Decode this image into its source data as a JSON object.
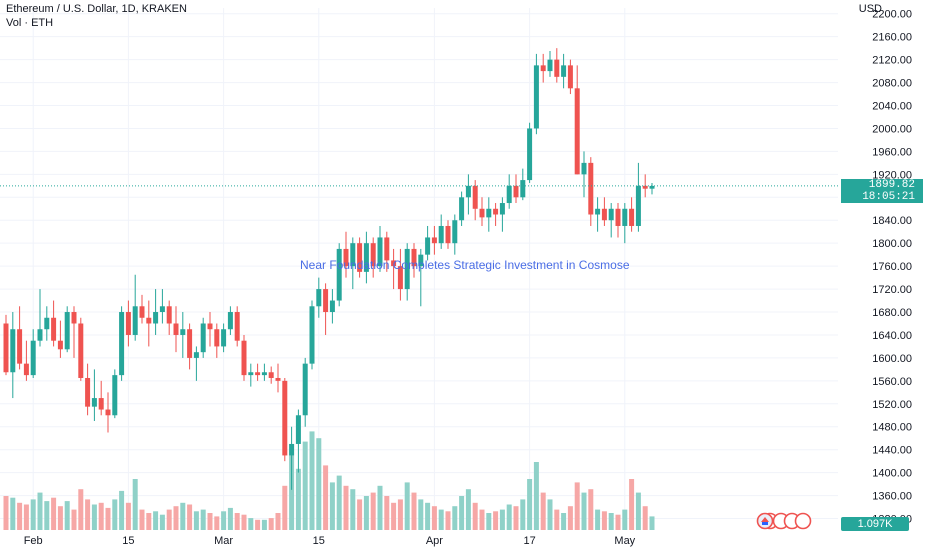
{
  "header": {
    "title": "Ethereum / U.S. Dollar, 1D, KRAKEN",
    "volume_label": "Vol · ETH",
    "currency": "USD"
  },
  "annotation": {
    "text": "Near Foundation Completes Strategic Investment in Cosmose"
  },
  "badges": {
    "last_price": "1899.82",
    "countdown": "18:05:21",
    "volume": "1.097K",
    "up_color": "#26a69a",
    "down_color": "#ef5350"
  },
  "chart_data": {
    "type": "candlestick",
    "title": "Ethereum / U.S. Dollar, 1D, KRAKEN",
    "y_unit": "USD",
    "ylim": [
      1300,
      2210
    ],
    "y_ticks": [
      1320,
      1360,
      1400,
      1440,
      1480,
      1520,
      1560,
      1600,
      1640,
      1680,
      1720,
      1760,
      1800,
      1840,
      1880,
      1920,
      1960,
      2000,
      2040,
      2080,
      2120,
      2160,
      2200
    ],
    "y_tick_labels": [
      "1320.00",
      "1360.00",
      "1400.00",
      "1440.00",
      "1480.00",
      "1520.00",
      "1560.00",
      "1600.00",
      "1640.00",
      "1680.00",
      "1720.00",
      "1760.00",
      "1800.00",
      "1840.00",
      "1880.00",
      "1920.00",
      "1960.00",
      "2000.00",
      "2040.00",
      "2080.00",
      "2120.00",
      "2160.00",
      "2200.00"
    ],
    "x_ticks": [
      {
        "index": 4,
        "label": "Feb"
      },
      {
        "index": 18,
        "label": "15"
      },
      {
        "index": 32,
        "label": "Mar"
      },
      {
        "index": 46,
        "label": "15"
      },
      {
        "index": 63,
        "label": "Apr"
      },
      {
        "index": 77,
        "label": "17"
      },
      {
        "index": 91,
        "label": "May"
      }
    ],
    "last_price": 1899.82,
    "grid": true,
    "candles": [
      {
        "o": 1660,
        "h": 1675,
        "l": 1570,
        "c": 1575,
        "v": 1.0
      },
      {
        "o": 1575,
        "h": 1680,
        "l": 1530,
        "c": 1650,
        "v": 0.95
      },
      {
        "o": 1650,
        "h": 1690,
        "l": 1580,
        "c": 1590,
        "v": 0.8
      },
      {
        "o": 1590,
        "h": 1630,
        "l": 1560,
        "c": 1570,
        "v": 0.75
      },
      {
        "o": 1570,
        "h": 1650,
        "l": 1565,
        "c": 1630,
        "v": 0.9
      },
      {
        "o": 1630,
        "h": 1720,
        "l": 1620,
        "c": 1650,
        "v": 1.1
      },
      {
        "o": 1650,
        "h": 1690,
        "l": 1630,
        "c": 1670,
        "v": 0.85
      },
      {
        "o": 1670,
        "h": 1700,
        "l": 1620,
        "c": 1630,
        "v": 0.95
      },
      {
        "o": 1630,
        "h": 1665,
        "l": 1600,
        "c": 1615,
        "v": 0.7
      },
      {
        "o": 1615,
        "h": 1690,
        "l": 1610,
        "c": 1680,
        "v": 0.85
      },
      {
        "o": 1680,
        "h": 1690,
        "l": 1600,
        "c": 1660,
        "v": 0.6
      },
      {
        "o": 1660,
        "h": 1670,
        "l": 1560,
        "c": 1565,
        "v": 1.2
      },
      {
        "o": 1565,
        "h": 1590,
        "l": 1500,
        "c": 1515,
        "v": 0.9
      },
      {
        "o": 1515,
        "h": 1580,
        "l": 1490,
        "c": 1530,
        "v": 0.75
      },
      {
        "o": 1530,
        "h": 1560,
        "l": 1500,
        "c": 1510,
        "v": 0.8
      },
      {
        "o": 1510,
        "h": 1540,
        "l": 1470,
        "c": 1500,
        "v": 0.65
      },
      {
        "o": 1500,
        "h": 1580,
        "l": 1495,
        "c": 1570,
        "v": 0.9
      },
      {
        "o": 1570,
        "h": 1690,
        "l": 1560,
        "c": 1680,
        "v": 1.15
      },
      {
        "o": 1680,
        "h": 1700,
        "l": 1620,
        "c": 1640,
        "v": 0.8
      },
      {
        "o": 1640,
        "h": 1745,
        "l": 1630,
        "c": 1690,
        "v": 1.5
      },
      {
        "o": 1690,
        "h": 1710,
        "l": 1660,
        "c": 1670,
        "v": 0.6
      },
      {
        "o": 1670,
        "h": 1700,
        "l": 1620,
        "c": 1660,
        "v": 0.5
      },
      {
        "o": 1660,
        "h": 1720,
        "l": 1640,
        "c": 1680,
        "v": 0.55
      },
      {
        "o": 1680,
        "h": 1720,
        "l": 1660,
        "c": 1690,
        "v": 0.45
      },
      {
        "o": 1690,
        "h": 1700,
        "l": 1640,
        "c": 1660,
        "v": 0.6
      },
      {
        "o": 1660,
        "h": 1690,
        "l": 1610,
        "c": 1640,
        "v": 0.7
      },
      {
        "o": 1640,
        "h": 1680,
        "l": 1600,
        "c": 1650,
        "v": 0.8
      },
      {
        "o": 1650,
        "h": 1660,
        "l": 1580,
        "c": 1600,
        "v": 0.75
      },
      {
        "o": 1600,
        "h": 1620,
        "l": 1560,
        "c": 1610,
        "v": 0.55
      },
      {
        "o": 1610,
        "h": 1670,
        "l": 1600,
        "c": 1660,
        "v": 0.6
      },
      {
        "o": 1660,
        "h": 1680,
        "l": 1620,
        "c": 1650,
        "v": 0.5
      },
      {
        "o": 1650,
        "h": 1660,
        "l": 1600,
        "c": 1620,
        "v": 0.4
      },
      {
        "o": 1620,
        "h": 1660,
        "l": 1610,
        "c": 1650,
        "v": 0.55
      },
      {
        "o": 1650,
        "h": 1690,
        "l": 1640,
        "c": 1680,
        "v": 0.65
      },
      {
        "o": 1680,
        "h": 1690,
        "l": 1620,
        "c": 1630,
        "v": 0.5
      },
      {
        "o": 1630,
        "h": 1640,
        "l": 1560,
        "c": 1570,
        "v": 0.45
      },
      {
        "o": 1570,
        "h": 1590,
        "l": 1550,
        "c": 1575,
        "v": 0.35
      },
      {
        "o": 1575,
        "h": 1590,
        "l": 1560,
        "c": 1570,
        "v": 0.3
      },
      {
        "o": 1570,
        "h": 1590,
        "l": 1560,
        "c": 1575,
        "v": 0.3
      },
      {
        "o": 1575,
        "h": 1585,
        "l": 1555,
        "c": 1565,
        "v": 0.35
      },
      {
        "o": 1565,
        "h": 1590,
        "l": 1540,
        "c": 1560,
        "v": 0.5
      },
      {
        "o": 1560,
        "h": 1565,
        "l": 1420,
        "c": 1430,
        "v": 1.3
      },
      {
        "o": 1430,
        "h": 1480,
        "l": 1370,
        "c": 1450,
        "v": 2.2
      },
      {
        "o": 1450,
        "h": 1510,
        "l": 1400,
        "c": 1500,
        "v": 1.8
      },
      {
        "o": 1500,
        "h": 1600,
        "l": 1480,
        "c": 1590,
        "v": 2.6
      },
      {
        "o": 1590,
        "h": 1700,
        "l": 1580,
        "c": 1690,
        "v": 2.9
      },
      {
        "o": 1690,
        "h": 1740,
        "l": 1670,
        "c": 1720,
        "v": 2.7
      },
      {
        "o": 1720,
        "h": 1730,
        "l": 1640,
        "c": 1680,
        "v": 1.9
      },
      {
        "o": 1680,
        "h": 1720,
        "l": 1660,
        "c": 1700,
        "v": 1.4
      },
      {
        "o": 1700,
        "h": 1800,
        "l": 1690,
        "c": 1790,
        "v": 1.6
      },
      {
        "o": 1790,
        "h": 1820,
        "l": 1740,
        "c": 1760,
        "v": 1.3
      },
      {
        "o": 1760,
        "h": 1810,
        "l": 1720,
        "c": 1800,
        "v": 1.2
      },
      {
        "o": 1800,
        "h": 1810,
        "l": 1740,
        "c": 1750,
        "v": 0.9
      },
      {
        "o": 1750,
        "h": 1820,
        "l": 1730,
        "c": 1800,
        "v": 1.0
      },
      {
        "o": 1800,
        "h": 1810,
        "l": 1740,
        "c": 1760,
        "v": 1.1
      },
      {
        "o": 1760,
        "h": 1830,
        "l": 1750,
        "c": 1810,
        "v": 1.3
      },
      {
        "o": 1810,
        "h": 1820,
        "l": 1750,
        "c": 1770,
        "v": 1.0
      },
      {
        "o": 1770,
        "h": 1790,
        "l": 1720,
        "c": 1760,
        "v": 0.8
      },
      {
        "o": 1760,
        "h": 1790,
        "l": 1700,
        "c": 1720,
        "v": 0.9
      },
      {
        "o": 1720,
        "h": 1800,
        "l": 1700,
        "c": 1790,
        "v": 1.4
      },
      {
        "o": 1790,
        "h": 1800,
        "l": 1740,
        "c": 1760,
        "v": 1.1
      },
      {
        "o": 1760,
        "h": 1790,
        "l": 1690,
        "c": 1780,
        "v": 0.9
      },
      {
        "o": 1780,
        "h": 1830,
        "l": 1770,
        "c": 1810,
        "v": 0.8
      },
      {
        "o": 1810,
        "h": 1830,
        "l": 1780,
        "c": 1800,
        "v": 0.7
      },
      {
        "o": 1800,
        "h": 1850,
        "l": 1790,
        "c": 1830,
        "v": 0.6
      },
      {
        "o": 1830,
        "h": 1840,
        "l": 1790,
        "c": 1800,
        "v": 0.55
      },
      {
        "o": 1800,
        "h": 1850,
        "l": 1780,
        "c": 1840,
        "v": 0.7
      },
      {
        "o": 1840,
        "h": 1890,
        "l": 1830,
        "c": 1880,
        "v": 1.0
      },
      {
        "o": 1880,
        "h": 1920,
        "l": 1850,
        "c": 1900,
        "v": 1.2
      },
      {
        "o": 1900,
        "h": 1910,
        "l": 1840,
        "c": 1860,
        "v": 0.8
      },
      {
        "o": 1860,
        "h": 1880,
        "l": 1830,
        "c": 1845,
        "v": 0.6
      },
      {
        "o": 1845,
        "h": 1880,
        "l": 1820,
        "c": 1860,
        "v": 0.5
      },
      {
        "o": 1860,
        "h": 1870,
        "l": 1830,
        "c": 1850,
        "v": 0.55
      },
      {
        "o": 1850,
        "h": 1880,
        "l": 1820,
        "c": 1870,
        "v": 0.6
      },
      {
        "o": 1870,
        "h": 1920,
        "l": 1860,
        "c": 1900,
        "v": 0.75
      },
      {
        "o": 1900,
        "h": 1920,
        "l": 1870,
        "c": 1880,
        "v": 0.7
      },
      {
        "o": 1880,
        "h": 1930,
        "l": 1875,
        "c": 1910,
        "v": 0.9
      },
      {
        "o": 1910,
        "h": 2010,
        "l": 1905,
        "c": 2000,
        "v": 1.5
      },
      {
        "o": 2000,
        "h": 2130,
        "l": 1990,
        "c": 2110,
        "v": 2.0
      },
      {
        "o": 2110,
        "h": 2130,
        "l": 2080,
        "c": 2100,
        "v": 1.1
      },
      {
        "o": 2100,
        "h": 2135,
        "l": 2090,
        "c": 2120,
        "v": 0.9
      },
      {
        "o": 2120,
        "h": 2140,
        "l": 2080,
        "c": 2090,
        "v": 0.6
      },
      {
        "o": 2090,
        "h": 2130,
        "l": 2070,
        "c": 2110,
        "v": 0.5
      },
      {
        "o": 2110,
        "h": 2120,
        "l": 2060,
        "c": 2070,
        "v": 0.7
      },
      {
        "o": 2070,
        "h": 2110,
        "l": 1920,
        "c": 1920,
        "v": 1.4
      },
      {
        "o": 1920,
        "h": 1960,
        "l": 1880,
        "c": 1940,
        "v": 1.1
      },
      {
        "o": 1940,
        "h": 1950,
        "l": 1830,
        "c": 1850,
        "v": 1.2
      },
      {
        "o": 1850,
        "h": 1880,
        "l": 1820,
        "c": 1860,
        "v": 0.6
      },
      {
        "o": 1860,
        "h": 1880,
        "l": 1830,
        "c": 1840,
        "v": 0.55
      },
      {
        "o": 1840,
        "h": 1870,
        "l": 1810,
        "c": 1860,
        "v": 0.5
      },
      {
        "o": 1860,
        "h": 1870,
        "l": 1810,
        "c": 1830,
        "v": 0.45
      },
      {
        "o": 1830,
        "h": 1870,
        "l": 1800,
        "c": 1860,
        "v": 0.6
      },
      {
        "o": 1860,
        "h": 1880,
        "l": 1820,
        "c": 1830,
        "v": 1.5
      },
      {
        "o": 1830,
        "h": 1940,
        "l": 1820,
        "c": 1900,
        "v": 1.1
      },
      {
        "o": 1900,
        "h": 1920,
        "l": 1880,
        "c": 1895,
        "v": 0.7
      },
      {
        "o": 1895,
        "h": 1905,
        "l": 1885,
        "c": 1899.82,
        "v": 0.4
      }
    ]
  }
}
